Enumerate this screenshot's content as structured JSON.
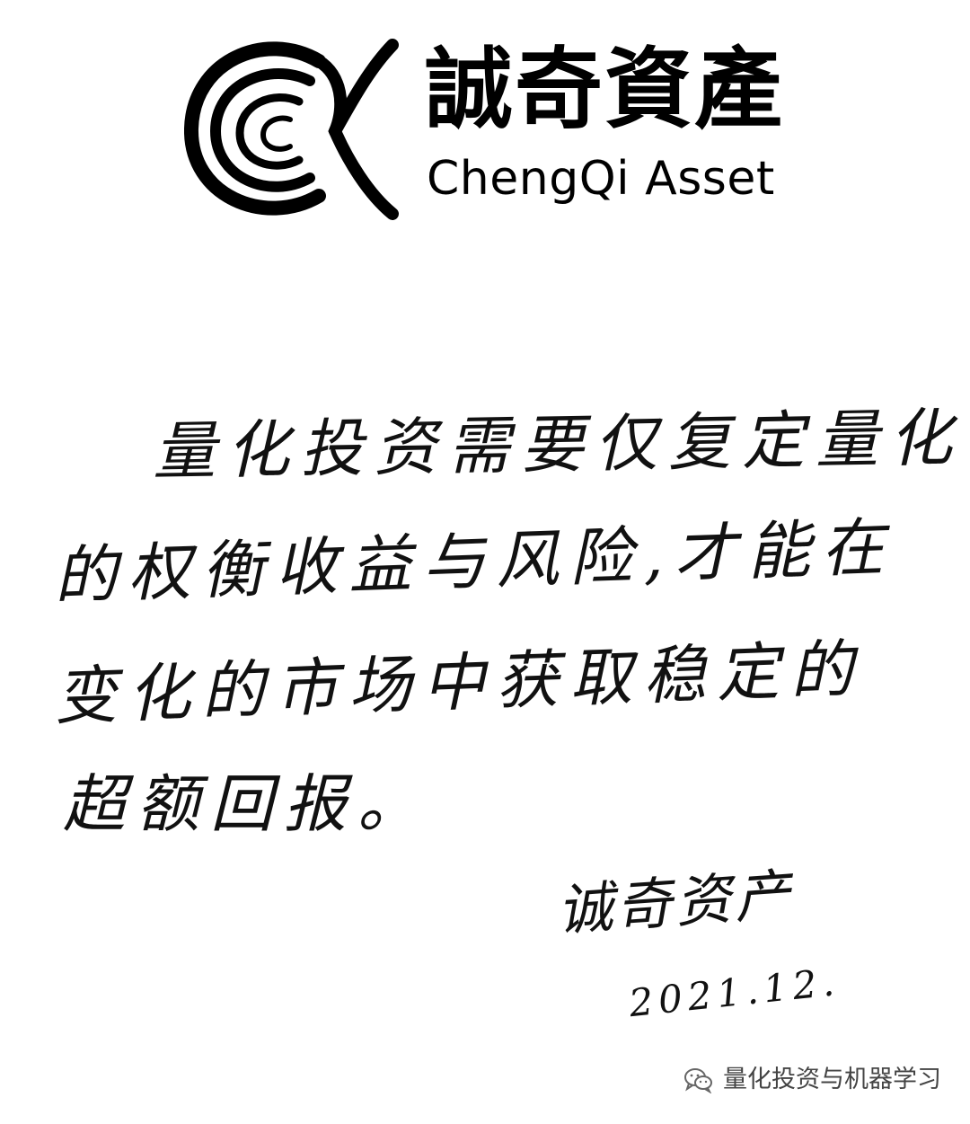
{
  "logo": {
    "name_cn": "誠奇資產",
    "name_en": "ChengQi Asset"
  },
  "message": {
    "lines": [
      "量化投资需要仅复定量化",
      "的权衡收益与风险,才能在",
      "变化的市场中获取稳定的",
      "超额回报。"
    ]
  },
  "signature": {
    "name": "诚奇资产",
    "date": "2021.12."
  },
  "watermark": {
    "icon": "wechat-icon",
    "text": "量化投资与机器学习"
  }
}
